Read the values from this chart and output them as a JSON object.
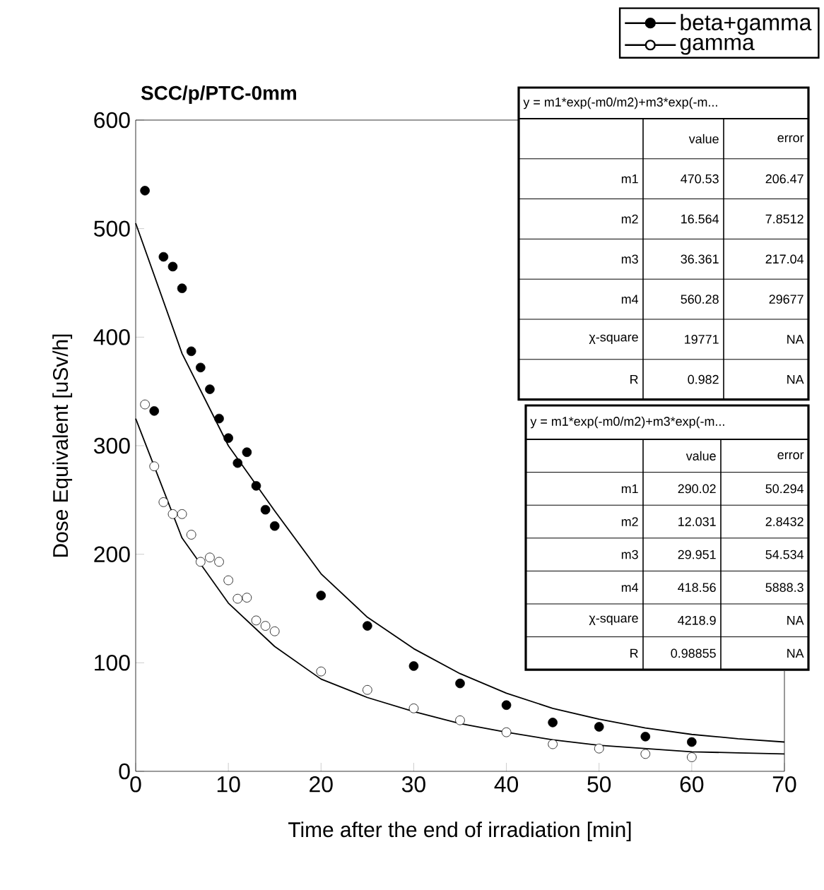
{
  "chart_data": {
    "type": "scatter",
    "title": "SCC/p/PTC-0mm",
    "xlabel": "Time after the end of irradiation [min]",
    "ylabel": "Dose Equivalent [uSv/h]",
    "xlim": [
      0,
      70
    ],
    "ylim": [
      0,
      600
    ],
    "xticks": [
      0,
      10,
      20,
      30,
      40,
      50,
      60,
      70
    ],
    "yticks": [
      0,
      100,
      200,
      300,
      400,
      500,
      600
    ],
    "legend": "top right",
    "series": [
      {
        "name": "beta+gamma",
        "marker": "circle",
        "color": "#000000",
        "x": [
          1,
          2,
          3,
          4,
          5,
          6,
          7,
          8,
          9,
          10,
          11,
          12,
          13,
          14,
          15,
          20,
          25,
          30,
          35,
          40,
          45,
          50,
          55,
          60
        ],
        "values": [
          535,
          332,
          474,
          465,
          445,
          387,
          372,
          352,
          325,
          307,
          284,
          294,
          263,
          241,
          226,
          162,
          134,
          97,
          81,
          61,
          45,
          41,
          32,
          27
        ]
      },
      {
        "name": "gamma",
        "marker": "open circle",
        "color": "#000000",
        "x": [
          1,
          2,
          3,
          4,
          5,
          6,
          7,
          8,
          9,
          10,
          11,
          12,
          13,
          14,
          15,
          20,
          25,
          30,
          35,
          40,
          45,
          50,
          55,
          60
        ],
        "values": [
          338,
          281,
          248,
          237,
          237,
          218,
          193,
          197,
          193,
          176,
          159,
          160,
          139,
          134,
          129,
          92,
          75,
          58,
          47,
          36,
          25,
          21,
          16,
          13
        ]
      },
      {
        "type": "line",
        "marker": "none",
        "color": "#000000",
        "x": [
          0,
          5,
          10,
          15,
          20,
          25,
          30,
          35,
          40,
          45,
          50,
          55,
          60,
          65,
          70
        ],
        "values": [
          505,
          385,
          300,
          240,
          182,
          142,
          113,
          90,
          72,
          58,
          48,
          40,
          34,
          30,
          27
        ]
      },
      {
        "type": "line",
        "marker": "none",
        "color": "#000000",
        "x": [
          0,
          5,
          10,
          15,
          20,
          25,
          30,
          35,
          40,
          45,
          50,
          55,
          60,
          65,
          70
        ],
        "values": [
          325,
          215,
          155,
          115,
          85,
          68,
          55,
          44,
          36,
          29,
          24,
          21,
          18,
          17,
          16
        ]
      }
    ],
    "annotations": [
      "y = m1*exp(-m0/m2)+m3*exp(-m...",
      "value",
      "error",
      "m1",
      "470.53",
      "206.47",
      "m2",
      "16.564",
      "7.8512",
      "m3",
      "36.361",
      "217.04",
      "m4",
      "560.28",
      "29677",
      "χ-square",
      "19771",
      "NA",
      "R",
      "0.982",
      "NA",
      "y = m1*exp(-m0/m2)+m3*exp(-m...",
      "value",
      "error",
      "m1",
      "290.02",
      "50.294",
      "m2",
      "12.031",
      "2.8432",
      "m3",
      "29.951",
      "54.534",
      "m4",
      "418.56",
      "5888.3",
      "χ-square",
      "4218.9",
      "NA",
      "R",
      "0.98855",
      "NA"
    ]
  }
}
